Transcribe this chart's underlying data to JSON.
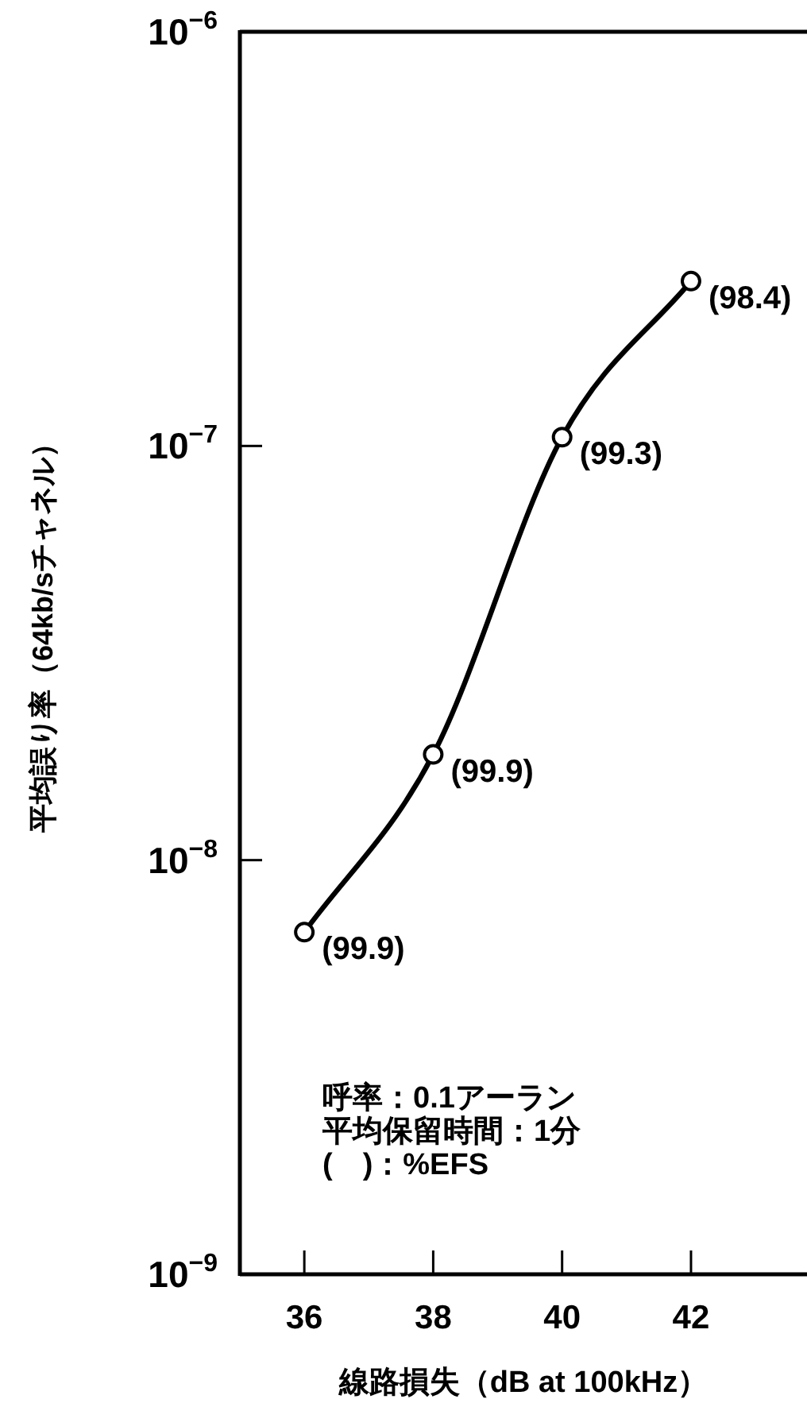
{
  "chart_data": {
    "type": "line",
    "xlabel": "線路損失（dB at 100kHz）",
    "ylabel": "平均誤り率（64kb/sチャネル）",
    "x": [
      36,
      38,
      40,
      42
    ],
    "values": [
      6.7e-09,
      1.8e-08,
      1.05e-07,
      2.5e-07
    ],
    "color": "#000000",
    "marker": "circle",
    "line_style": "solid",
    "log": "y",
    "xlim": [
      35,
      43.8
    ],
    "xticks": [
      36,
      38,
      40,
      42
    ],
    "ylim": [
      1e-09,
      1e-06
    ],
    "yticks": [
      {
        "value": 1e-09,
        "label": "10$^{−9}$"
      },
      {
        "value": 1e-08,
        "label": "10$^{−8}$"
      },
      {
        "value": 1e-07,
        "label": "10$^{−7}$"
      },
      {
        "value": 1e-06,
        "label": "10$^{−6}$"
      }
    ],
    "annotations": [
      {
        "text": "(99.9)",
        "x": 36,
        "y": 6.7e-09
      },
      {
        "text": "(99.9)",
        "x": 38,
        "y": 1.8e-08
      },
      {
        "text": "(99.3)",
        "x": 40,
        "y": 1.05e-07
      },
      {
        "text": "(98.4)",
        "x": 42,
        "y": 2.5e-07
      },
      "呼率：0.1アーラン",
      "平均保留時間：1分",
      "(　)：%EFS"
    ]
  }
}
